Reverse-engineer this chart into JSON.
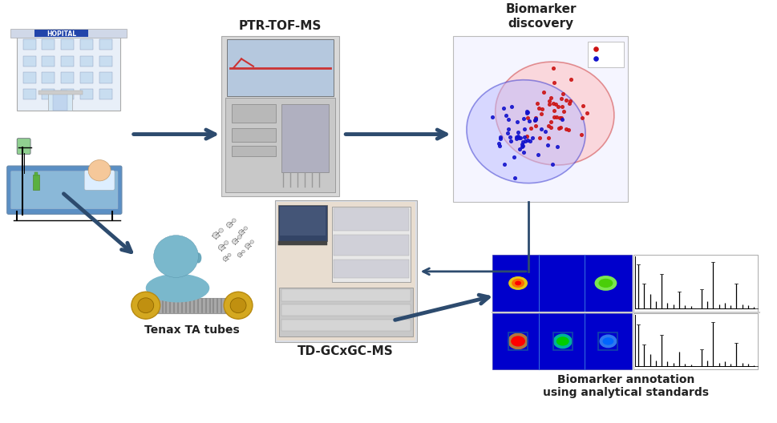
{
  "figure_width": 9.69,
  "figure_height": 5.28,
  "dpi": 100,
  "background_color": "#ffffff",
  "labels": {
    "ptr_tof_ms": "PTR-TOF-MS",
    "biomarker_discovery": "Biomarker\ndiscovery",
    "tenax_ta_tubes": "Tenax TA tubes",
    "td_gcxgc_ms": "TD-GCxGC-MS",
    "biomarker_annotation": "Biomarker annotation\nusing analytical standards"
  },
  "arrow_color": "#2d4b6e",
  "arrow_lw": 3.5,
  "arrow_lw_thin": 2.0
}
